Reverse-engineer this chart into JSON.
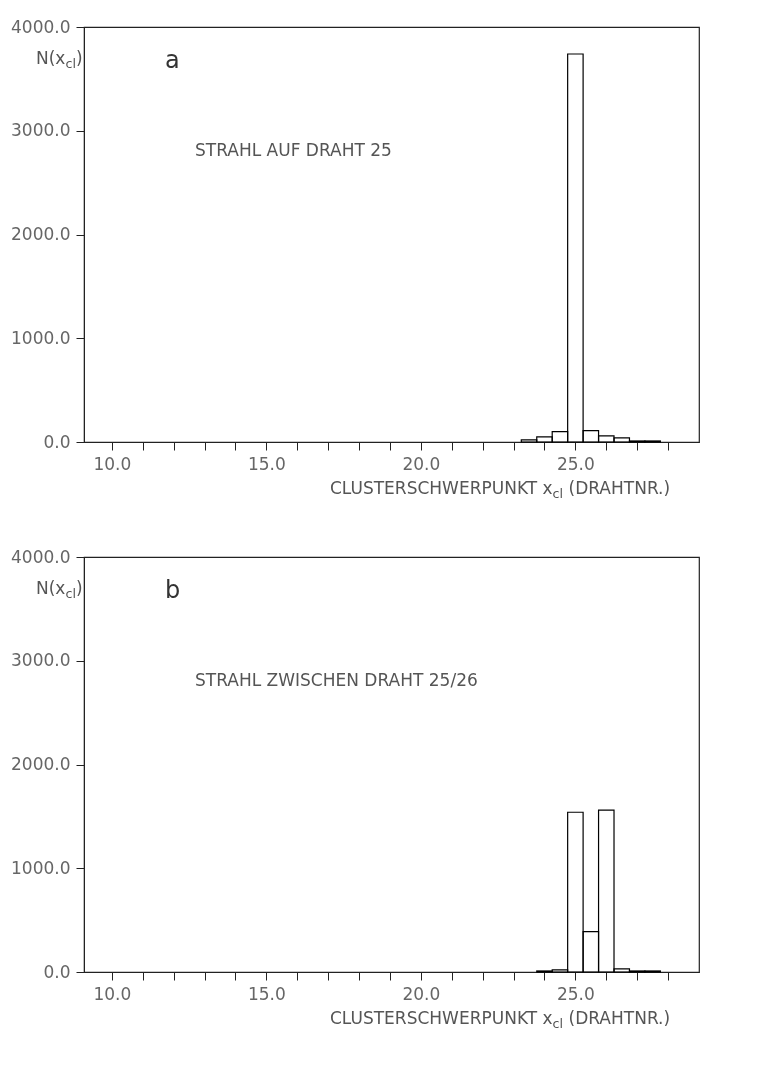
{
  "chart_data": [
    {
      "type": "histogram",
      "ylabel": "N(x$_{cl}$)",
      "xlabel": "CLUSTERSCHWERPUNKT x$_{cl}$  (DRAHTNR.)",
      "annotations": [
        "a",
        "STRAHL AUF DRAHT 25"
      ],
      "color": "#000000",
      "bins": [
        23.25,
        23.75,
        24.25,
        24.75,
        25.25,
        25.75,
        26.25,
        26.75,
        27.25,
        27.75
      ],
      "values": [
        20,
        50,
        100,
        3740,
        110,
        60,
        40,
        10,
        10
      ],
      "xlim": [
        9.1,
        29
      ],
      "ylim": [
        0,
        4000
      ],
      "xticks": [
        {
          "value": 10,
          "label": "10.0"
        },
        {
          "value": 11,
          "label": null
        },
        {
          "value": 12,
          "label": null
        },
        {
          "value": 13,
          "label": null
        },
        {
          "value": 14,
          "label": null
        },
        {
          "value": 15,
          "label": "15.0"
        },
        {
          "value": 16,
          "label": null
        },
        {
          "value": 17,
          "label": null
        },
        {
          "value": 18,
          "label": null
        },
        {
          "value": 19,
          "label": null
        },
        {
          "value": 20,
          "label": "20.0"
        },
        {
          "value": 21,
          "label": null
        },
        {
          "value": 22,
          "label": null
        },
        {
          "value": 23,
          "label": null
        },
        {
          "value": 24,
          "label": null
        },
        {
          "value": 25,
          "label": "25.0"
        },
        {
          "value": 26,
          "label": null
        },
        {
          "value": 27,
          "label": null
        },
        {
          "value": 28,
          "label": null
        }
      ],
      "yticks": [
        {
          "value": 0,
          "label": "0.0"
        },
        {
          "value": 1000,
          "label": "1000.0"
        },
        {
          "value": 2000,
          "label": "2000.0"
        },
        {
          "value": 3000,
          "label": "3000.0"
        },
        {
          "value": 4000,
          "label": "4000.0"
        }
      ]
    },
    {
      "type": "histogram",
      "ylabel": "N(x$_{cl}$)",
      "xlabel": "CLUSTERSCHWERPUNKT x$_{cl}$  (DRAHTNR.)",
      "annotations": [
        "b",
        "STRAHL ZWISCHEN DRAHT 25/26"
      ],
      "color": "#000000",
      "bins": [
        23.75,
        24.25,
        24.75,
        25.25,
        25.75,
        26.25,
        26.75,
        27.25,
        27.75
      ],
      "values": [
        10,
        20,
        1540,
        390,
        1560,
        30,
        10,
        10
      ],
      "xlim": [
        9.1,
        29
      ],
      "ylim": [
        0,
        4000
      ],
      "xticks": [
        {
          "value": 10,
          "label": "10.0"
        },
        {
          "value": 11,
          "label": null
        },
        {
          "value": 12,
          "label": null
        },
        {
          "value": 13,
          "label": null
        },
        {
          "value": 14,
          "label": null
        },
        {
          "value": 15,
          "label": "15.0"
        },
        {
          "value": 16,
          "label": null
        },
        {
          "value": 17,
          "label": null
        },
        {
          "value": 18,
          "label": null
        },
        {
          "value": 19,
          "label": null
        },
        {
          "value": 20,
          "label": "20.0"
        },
        {
          "value": 21,
          "label": null
        },
        {
          "value": 22,
          "label": null
        },
        {
          "value": 23,
          "label": null
        },
        {
          "value": 24,
          "label": null
        },
        {
          "value": 25,
          "label": "25.0"
        },
        {
          "value": 26,
          "label": null
        },
        {
          "value": 27,
          "label": null
        },
        {
          "value": 28,
          "label": null
        }
      ],
      "yticks": [
        {
          "value": 0,
          "label": "0.0"
        },
        {
          "value": 1000,
          "label": "1000.0"
        },
        {
          "value": 2000,
          "label": "2000.0"
        },
        {
          "value": 3000,
          "label": "3000.0"
        },
        {
          "value": 4000,
          "label": "4000.0"
        }
      ]
    }
  ]
}
